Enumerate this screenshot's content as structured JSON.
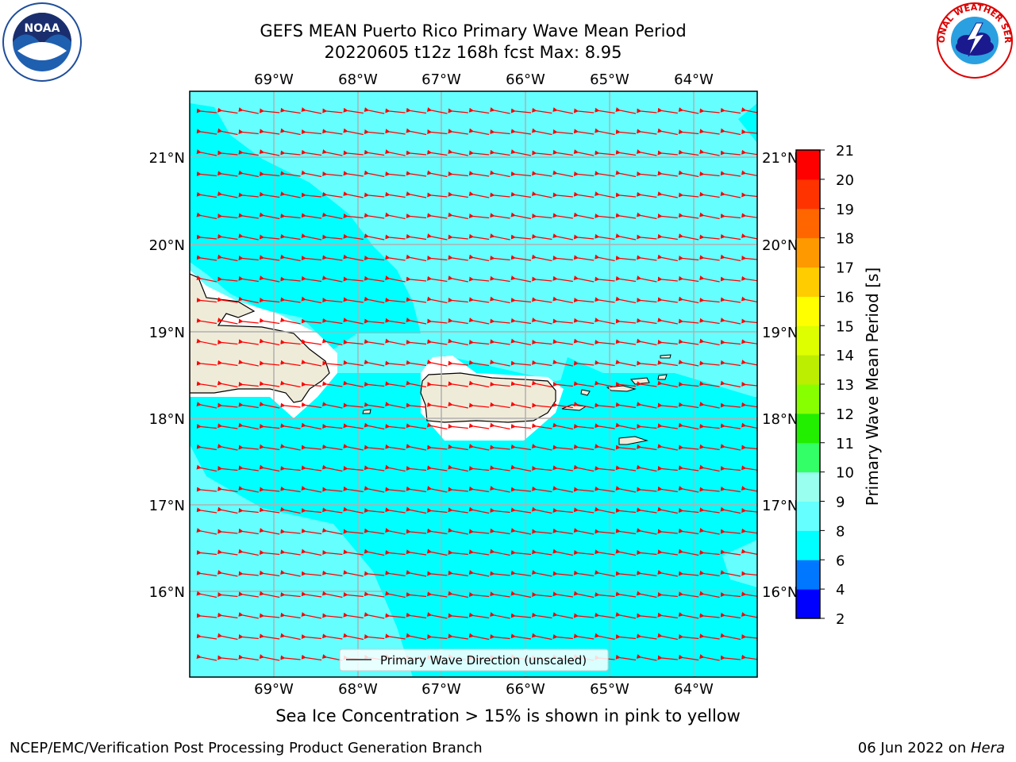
{
  "title_line1": "GEFS MEAN Puerto Rico Primary Wave Mean Period",
  "title_line2": "20220605 t12z 168h fcst   Max: 8.95",
  "lon_labels": [
    "69°W",
    "68°W",
    "67°W",
    "66°W",
    "65°W",
    "64°W"
  ],
  "lat_labels": [
    "21°N",
    "20°N",
    "19°N",
    "18°N",
    "17°N",
    "16°N"
  ],
  "legend_label": "Primary Wave Direction (unscaled)",
  "colorbar": {
    "label": "Primary Wave Mean Period [s]",
    "ticks": [
      "2",
      "4",
      "6",
      "8",
      "9",
      "10",
      "11",
      "12",
      "13",
      "14",
      "15",
      "16",
      "17",
      "18",
      "19",
      "20",
      "21"
    ],
    "colors": [
      "#0000ff",
      "#0077ff",
      "#00ffff",
      "#66ffff",
      "#99ffee",
      "#33ff66",
      "#22ee00",
      "#88ff00",
      "#bbee00",
      "#ddff00",
      "#ffff00",
      "#ffcc00",
      "#ff9900",
      "#ff6600",
      "#ff3300",
      "#ff0000"
    ]
  },
  "sea_ice_note": "Sea Ice Concentration > 15% is shown in pink to yellow",
  "footer_left": "NCEP/EMC/Verification Post Processing Product Generation Branch",
  "footer_date": "06 Jun 2022 on ",
  "footer_machine": "Hera",
  "logos": {
    "left": "NOAA",
    "right": "NATIONAL WEATHER SERVICE"
  },
  "colors": {
    "sea_light": "#66ffff",
    "sea_cyan": "#00ffff",
    "land": "#efebd9",
    "arrow": "#ff0000",
    "grid": "#b0b0b0"
  }
}
